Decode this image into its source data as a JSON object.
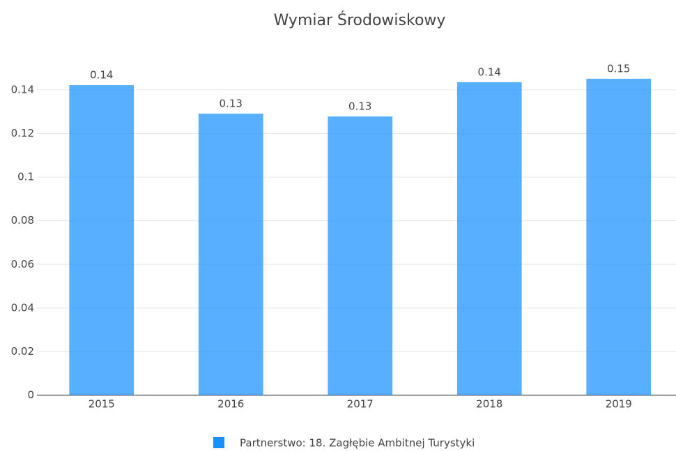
{
  "chart_data": {
    "type": "bar",
    "title": "Wymiar Środowiskowy",
    "categories": [
      "2015",
      "2016",
      "2017",
      "2018",
      "2019"
    ],
    "series": [
      {
        "name": "Partnerstwo: 18. Zagłębie Ambitnej Turystyki",
        "color": "#1890ff",
        "values": [
          0.1422,
          0.1291,
          0.1278,
          0.1435,
          0.1451
        ],
        "value_labels": [
          "0.14",
          "0.13",
          "0.13",
          "0.14",
          "0.15"
        ]
      }
    ],
    "ylim": [
      0,
      0.155
    ],
    "yticks": [
      0,
      0.02,
      0.04,
      0.06,
      0.08,
      0.1,
      0.12,
      0.14
    ],
    "grid": true
  }
}
